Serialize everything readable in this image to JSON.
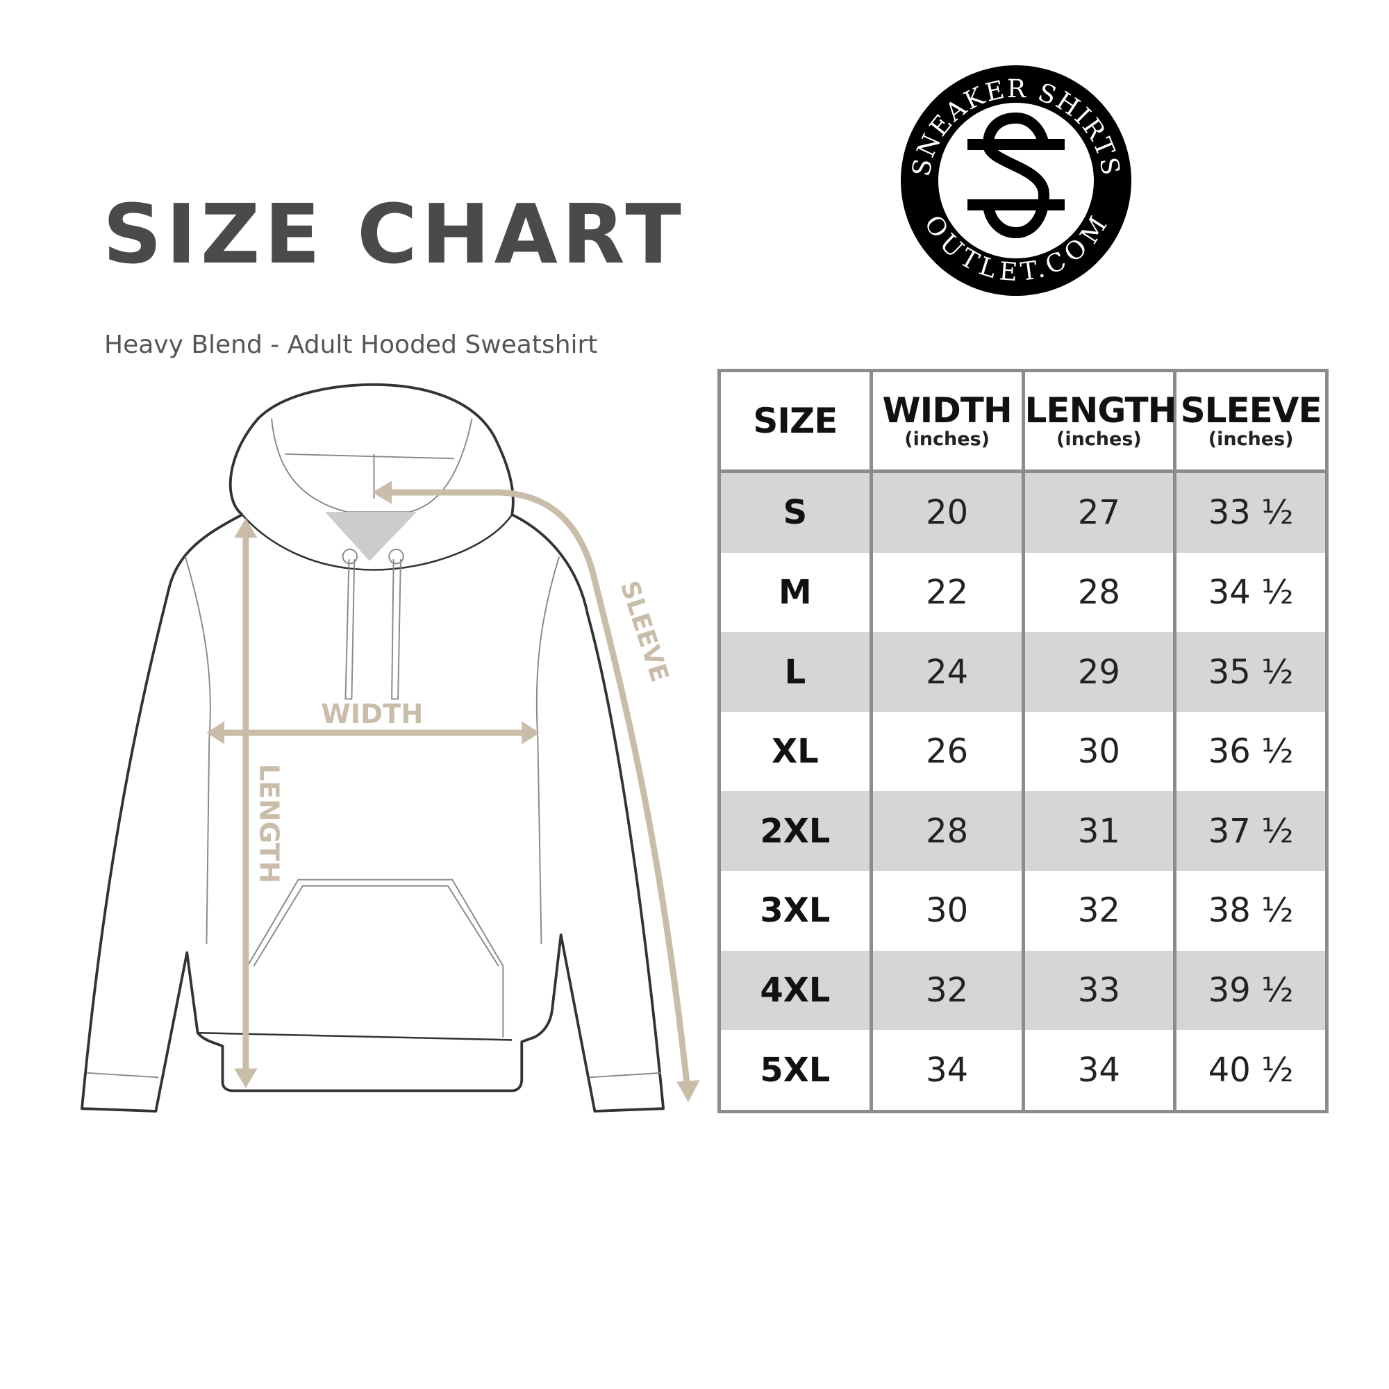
{
  "header": {
    "title": "SIZE CHART",
    "subtitle": "Heavy Blend - Adult Hooded Sweatshirt"
  },
  "logo": {
    "top_text": "SNEAKER SHIRTS",
    "bottom_text": "OUTLET.COM",
    "monogram": "SS"
  },
  "diagram": {
    "labels": {
      "width": "WIDTH",
      "length": "LENGTH",
      "sleeve": "SLEEVE"
    },
    "arrow_color": "#c9bda9",
    "outline_color": "#333333"
  },
  "table": {
    "columns": [
      {
        "label": "SIZE",
        "unit": ""
      },
      {
        "label": "WIDTH",
        "unit": "(inches)"
      },
      {
        "label": "LENGTH",
        "unit": "(inches)"
      },
      {
        "label": "SLEEVE",
        "unit": "(inches)"
      }
    ],
    "rows": [
      [
        "S",
        "20",
        "27",
        "33 ½"
      ],
      [
        "M",
        "22",
        "28",
        "34 ½"
      ],
      [
        "L",
        "24",
        "29",
        "35 ½"
      ],
      [
        "XL",
        "26",
        "30",
        "36 ½"
      ],
      [
        "2XL",
        "28",
        "31",
        "37 ½"
      ],
      [
        "3XL",
        "30",
        "32",
        "38 ½"
      ],
      [
        "4XL",
        "32",
        "33",
        "39 ½"
      ],
      [
        "5XL",
        "34",
        "34",
        "40 ½"
      ]
    ],
    "shade_color": "#d6d6d6",
    "border_color": "#8c8c8c"
  }
}
